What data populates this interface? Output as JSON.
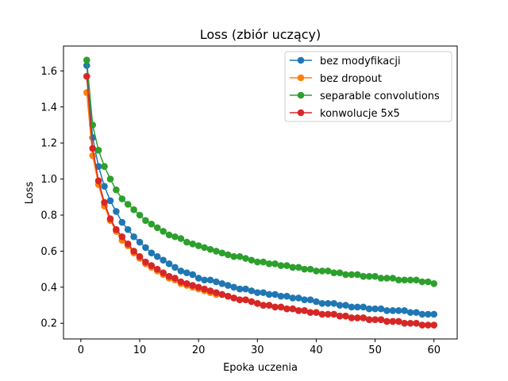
{
  "chart_data": {
    "type": "line",
    "title": "Loss (zbiór uczący)",
    "xlabel": "Epoka uczenia",
    "ylabel": "Loss",
    "xlim": [
      -2.95,
      63.95
    ],
    "ylim": [
      0.113,
      1.738
    ],
    "xticks": [
      0,
      10,
      20,
      30,
      40,
      50,
      60
    ],
    "yticks": [
      0.2,
      0.4,
      0.6,
      0.8,
      1.0,
      1.2,
      1.4,
      1.6
    ],
    "ytick_labels": [
      "0.2",
      "0.4",
      "0.6",
      "0.8",
      "1.0",
      "1.2",
      "1.4",
      "1.6"
    ],
    "grid": false,
    "legend_position": "top-right",
    "x": [
      1,
      2,
      3,
      4,
      5,
      6,
      7,
      8,
      9,
      10,
      11,
      12,
      13,
      14,
      15,
      16,
      17,
      18,
      19,
      20,
      21,
      22,
      23,
      24,
      25,
      26,
      27,
      28,
      29,
      30,
      31,
      32,
      33,
      34,
      35,
      36,
      37,
      38,
      39,
      40,
      41,
      42,
      43,
      44,
      45,
      46,
      47,
      48,
      49,
      50,
      51,
      52,
      53,
      54,
      55,
      56,
      57,
      58,
      59,
      60
    ],
    "series": [
      {
        "name": "bez modyfikacji",
        "color": "#1f77b4",
        "values": [
          1.63,
          1.23,
          1.07,
          0.96,
          0.88,
          0.82,
          0.76,
          0.72,
          0.68,
          0.65,
          0.62,
          0.59,
          0.57,
          0.55,
          0.53,
          0.51,
          0.49,
          0.48,
          0.47,
          0.45,
          0.44,
          0.44,
          0.43,
          0.42,
          0.41,
          0.4,
          0.39,
          0.39,
          0.38,
          0.37,
          0.37,
          0.36,
          0.36,
          0.35,
          0.35,
          0.34,
          0.34,
          0.33,
          0.33,
          0.32,
          0.31,
          0.31,
          0.31,
          0.3,
          0.3,
          0.29,
          0.29,
          0.29,
          0.28,
          0.28,
          0.28,
          0.27,
          0.27,
          0.27,
          0.27,
          0.26,
          0.26,
          0.25,
          0.25,
          0.25
        ]
      },
      {
        "name": "bez dropout",
        "color": "#ff7f0e",
        "values": [
          1.48,
          1.13,
          0.97,
          0.85,
          0.77,
          0.71,
          0.66,
          0.63,
          0.59,
          0.56,
          0.53,
          0.51,
          0.49,
          0.47,
          0.45,
          0.44,
          0.42,
          0.41,
          0.4,
          0.39,
          0.38,
          0.37,
          0.36,
          0.36,
          0.35,
          0.34,
          0.33,
          0.33,
          0.32,
          0.31,
          0.3,
          0.3,
          0.29,
          0.29,
          0.28,
          0.28,
          0.27,
          0.27,
          0.26,
          0.26,
          0.25,
          0.25,
          0.25,
          0.24,
          0.24,
          0.23,
          0.23,
          0.23,
          0.22,
          0.22,
          0.22,
          0.21,
          0.21,
          0.21,
          0.2,
          0.2,
          0.2,
          0.19,
          0.19,
          0.19
        ]
      },
      {
        "name": "separable convolutions",
        "color": "#2ca02c",
        "values": [
          1.66,
          1.3,
          1.16,
          1.07,
          1.0,
          0.94,
          0.89,
          0.86,
          0.83,
          0.8,
          0.77,
          0.75,
          0.73,
          0.71,
          0.69,
          0.68,
          0.67,
          0.65,
          0.64,
          0.63,
          0.62,
          0.61,
          0.6,
          0.59,
          0.58,
          0.57,
          0.57,
          0.56,
          0.55,
          0.54,
          0.54,
          0.53,
          0.53,
          0.52,
          0.52,
          0.51,
          0.51,
          0.5,
          0.5,
          0.49,
          0.49,
          0.49,
          0.48,
          0.48,
          0.47,
          0.47,
          0.47,
          0.46,
          0.46,
          0.46,
          0.45,
          0.45,
          0.45,
          0.44,
          0.44,
          0.44,
          0.44,
          0.43,
          0.43,
          0.42
        ]
      },
      {
        "name": "konwolucje 5x5",
        "color": "#d62728",
        "values": [
          1.57,
          1.17,
          0.99,
          0.87,
          0.78,
          0.72,
          0.68,
          0.64,
          0.6,
          0.57,
          0.54,
          0.52,
          0.5,
          0.48,
          0.46,
          0.45,
          0.43,
          0.42,
          0.41,
          0.4,
          0.39,
          0.38,
          0.37,
          0.36,
          0.35,
          0.34,
          0.33,
          0.33,
          0.32,
          0.31,
          0.3,
          0.3,
          0.29,
          0.29,
          0.28,
          0.28,
          0.27,
          0.27,
          0.26,
          0.26,
          0.25,
          0.25,
          0.25,
          0.24,
          0.24,
          0.23,
          0.23,
          0.23,
          0.22,
          0.22,
          0.22,
          0.21,
          0.21,
          0.21,
          0.2,
          0.2,
          0.2,
          0.19,
          0.19,
          0.19
        ]
      }
    ]
  }
}
